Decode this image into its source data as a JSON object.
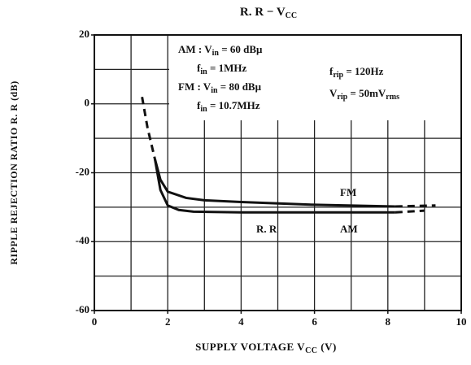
{
  "chart_data": {
    "type": "line",
    "title": [
      {
        "text": "R. R − V"
      },
      {
        "text": "CC",
        "sub": true
      }
    ],
    "y_label": "RIPPLE REJECTION RATIO   R. R (dB)",
    "x_label": [
      {
        "text": "SUPPLY VOLTAGE  V"
      },
      {
        "text": "CC",
        "sub": true
      },
      {
        "text": " (V)"
      }
    ],
    "xlim": [
      0,
      10
    ],
    "xticks": [
      0,
      2,
      4,
      6,
      8,
      10
    ],
    "xgrid": [
      1,
      2,
      3,
      4,
      5,
      6,
      7,
      8,
      9
    ],
    "ylim": [
      -60,
      20
    ],
    "yticks": [
      -60,
      -40,
      -20,
      0,
      20
    ],
    "ygrid": [
      -50,
      -40,
      -30,
      -20,
      -10,
      0,
      10
    ],
    "grid": true,
    "series": [
      {
        "color": "#111",
        "dashed": true,
        "x": [
          1.3,
          1.45,
          1.65
        ],
        "values": [
          2,
          -7,
          -16
        ]
      },
      {
        "name": "FM",
        "color": "#111",
        "x": [
          1.65,
          1.8,
          2.0,
          2.5,
          3,
          4,
          6,
          8.2
        ],
        "values": [
          -16,
          -22,
          -25.5,
          -27.3,
          -28,
          -28.5,
          -29.3,
          -29.8
        ]
      },
      {
        "name": "AM",
        "color": "#111",
        "x": [
          1.65,
          1.8,
          2.0,
          2.3,
          2.7,
          4,
          6,
          8.2
        ],
        "values": [
          -16,
          -25,
          -29.5,
          -30.8,
          -31.3,
          -31.5,
          -31.5,
          -31.5
        ]
      },
      {
        "color": "#111",
        "dashed": true,
        "x": [
          8.2,
          9.3
        ],
        "values": [
          -29.8,
          -29.5
        ]
      },
      {
        "color": "#111",
        "dashed": true,
        "x": [
          8.2,
          9.0
        ],
        "values": [
          -31.5,
          -31
        ]
      }
    ],
    "annotations": [
      [
        {
          "text": "AM : V"
        },
        {
          "text": "in",
          "sub": true
        },
        {
          "text": " = 60 dBμ"
        }
      ],
      [
        {
          "text": "f"
        },
        {
          "text": "in",
          "sub": true
        },
        {
          "text": " = 1MHz"
        }
      ],
      [
        {
          "text": "FM : V"
        },
        {
          "text": "in",
          "sub": true
        },
        {
          "text": " = 80 dBμ"
        }
      ],
      [
        {
          "text": "f"
        },
        {
          "text": "in",
          "sub": true
        },
        {
          "text": " = 10.7MHz"
        }
      ],
      [
        {
          "text": "f"
        },
        {
          "text": "rip",
          "sub": true
        },
        {
          "text": " = 120Hz"
        }
      ],
      [
        {
          "text": "V"
        },
        {
          "text": "rip",
          "sub": true
        },
        {
          "text": " = 50mV"
        },
        {
          "text": "rms",
          "sub": true
        }
      ],
      [
        {
          "text": "FM"
        }
      ],
      [
        {
          "text": "R. R"
        }
      ],
      [
        {
          "text": "AM"
        }
      ]
    ]
  }
}
